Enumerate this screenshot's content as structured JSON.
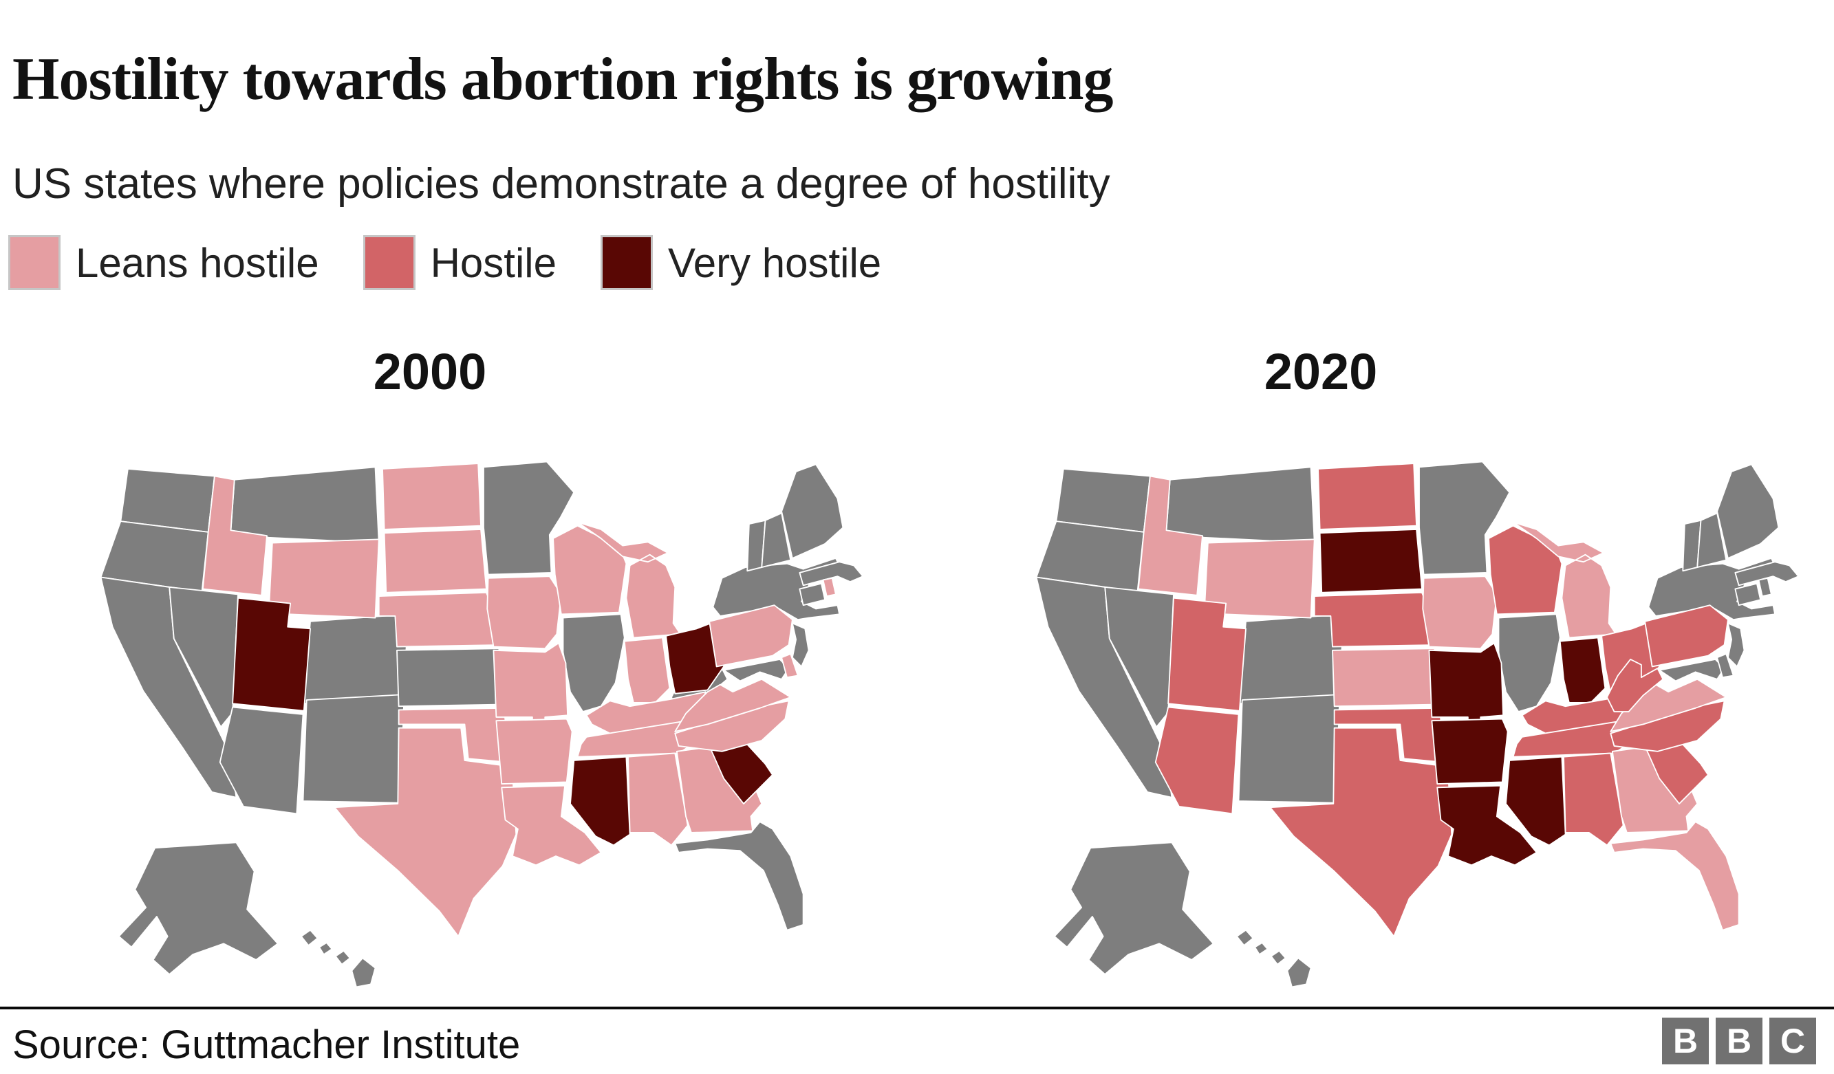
{
  "title": "Hostility towards abortion rights is growing",
  "subtitle": "US states where policies demonstrate a degree of hostility",
  "colors": {
    "leans": "#e59ea2",
    "hostile": "#d26467",
    "very": "#590704",
    "none": "#7e7e7e",
    "border": "#ffffff",
    "swatch_border": "#c6c6c6",
    "logo_gray": "#717171"
  },
  "legend": [
    {
      "key": "leans",
      "label": "Leans hostile"
    },
    {
      "key": "hostile",
      "label": "Hostile"
    },
    {
      "key": "very",
      "label": "Very hostile"
    }
  ],
  "maps": [
    {
      "year": "2000"
    },
    {
      "year": "2020"
    }
  ],
  "source": "Source: Guttmacher Institute",
  "logo": {
    "letters": [
      "B",
      "B",
      "C"
    ]
  },
  "states": [
    {
      "id": "WA",
      "name": "Washington",
      "status": {
        "2000": "none",
        "2020": "none"
      }
    },
    {
      "id": "OR",
      "name": "Oregon",
      "status": {
        "2000": "none",
        "2020": "none"
      }
    },
    {
      "id": "CA",
      "name": "California",
      "status": {
        "2000": "none",
        "2020": "none"
      }
    },
    {
      "id": "NV",
      "name": "Nevada",
      "status": {
        "2000": "none",
        "2020": "none"
      }
    },
    {
      "id": "ID",
      "name": "Idaho",
      "status": {
        "2000": "leans",
        "2020": "leans"
      }
    },
    {
      "id": "MT",
      "name": "Montana",
      "status": {
        "2000": "none",
        "2020": "none"
      }
    },
    {
      "id": "WY",
      "name": "Wyoming",
      "status": {
        "2000": "leans",
        "2020": "leans"
      }
    },
    {
      "id": "UT",
      "name": "Utah",
      "status": {
        "2000": "very",
        "2020": "hostile"
      }
    },
    {
      "id": "CO",
      "name": "Colorado",
      "status": {
        "2000": "none",
        "2020": "none"
      }
    },
    {
      "id": "AZ",
      "name": "Arizona",
      "status": {
        "2000": "none",
        "2020": "hostile"
      }
    },
    {
      "id": "NM",
      "name": "New Mexico",
      "status": {
        "2000": "none",
        "2020": "none"
      }
    },
    {
      "id": "ND",
      "name": "North Dakota",
      "status": {
        "2000": "leans",
        "2020": "hostile"
      }
    },
    {
      "id": "SD",
      "name": "South Dakota",
      "status": {
        "2000": "leans",
        "2020": "very"
      }
    },
    {
      "id": "NE",
      "name": "Nebraska",
      "status": {
        "2000": "leans",
        "2020": "hostile"
      }
    },
    {
      "id": "KS",
      "name": "Kansas",
      "status": {
        "2000": "none",
        "2020": "leans"
      }
    },
    {
      "id": "OK",
      "name": "Oklahoma",
      "status": {
        "2000": "leans",
        "2020": "hostile"
      }
    },
    {
      "id": "TX",
      "name": "Texas",
      "status": {
        "2000": "leans",
        "2020": "hostile"
      }
    },
    {
      "id": "MN",
      "name": "Minnesota",
      "status": {
        "2000": "none",
        "2020": "none"
      }
    },
    {
      "id": "IA",
      "name": "Iowa",
      "status": {
        "2000": "leans",
        "2020": "leans"
      }
    },
    {
      "id": "MO",
      "name": "Missouri",
      "status": {
        "2000": "leans",
        "2020": "very"
      }
    },
    {
      "id": "AR",
      "name": "Arkansas",
      "status": {
        "2000": "leans",
        "2020": "very"
      }
    },
    {
      "id": "LA",
      "name": "Louisiana",
      "status": {
        "2000": "leans",
        "2020": "very"
      }
    },
    {
      "id": "WI",
      "name": "Wisconsin",
      "status": {
        "2000": "leans",
        "2020": "hostile"
      }
    },
    {
      "id": "IL",
      "name": "Illinois",
      "status": {
        "2000": "none",
        "2020": "none"
      }
    },
    {
      "id": "MI",
      "name": "Michigan",
      "status": {
        "2000": "leans",
        "2020": "leans"
      }
    },
    {
      "id": "IN",
      "name": "Indiana",
      "status": {
        "2000": "leans",
        "2020": "very"
      }
    },
    {
      "id": "OH",
      "name": "Ohio",
      "status": {
        "2000": "very",
        "2020": "hostile"
      }
    },
    {
      "id": "KY",
      "name": "Kentucky",
      "status": {
        "2000": "leans",
        "2020": "hostile"
      }
    },
    {
      "id": "TN",
      "name": "Tennessee",
      "status": {
        "2000": "leans",
        "2020": "hostile"
      }
    },
    {
      "id": "MS",
      "name": "Mississippi",
      "status": {
        "2000": "very",
        "2020": "very"
      }
    },
    {
      "id": "AL",
      "name": "Alabama",
      "status": {
        "2000": "leans",
        "2020": "hostile"
      }
    },
    {
      "id": "GA",
      "name": "Georgia",
      "status": {
        "2000": "leans",
        "2020": "leans"
      }
    },
    {
      "id": "FL",
      "name": "Florida",
      "status": {
        "2000": "none",
        "2020": "leans"
      }
    },
    {
      "id": "SC",
      "name": "South Carolina",
      "status": {
        "2000": "very",
        "2020": "hostile"
      }
    },
    {
      "id": "NC",
      "name": "North Carolina",
      "status": {
        "2000": "leans",
        "2020": "hostile"
      }
    },
    {
      "id": "VA",
      "name": "Virginia",
      "status": {
        "2000": "leans",
        "2020": "leans"
      }
    },
    {
      "id": "WV",
      "name": "West Virginia",
      "status": {
        "2000": "none",
        "2020": "hostile"
      }
    },
    {
      "id": "PA",
      "name": "Pennsylvania",
      "status": {
        "2000": "leans",
        "2020": "hostile"
      }
    },
    {
      "id": "MD",
      "name": "Maryland",
      "status": {
        "2000": "none",
        "2020": "none"
      }
    },
    {
      "id": "DE",
      "name": "Delaware",
      "status": {
        "2000": "leans",
        "2020": "none"
      }
    },
    {
      "id": "NJ",
      "name": "New Jersey",
      "status": {
        "2000": "none",
        "2020": "none"
      }
    },
    {
      "id": "NY",
      "name": "New York",
      "status": {
        "2000": "none",
        "2020": "none"
      }
    },
    {
      "id": "CT",
      "name": "Connecticut",
      "status": {
        "2000": "none",
        "2020": "none"
      }
    },
    {
      "id": "RI",
      "name": "Rhode Island",
      "status": {
        "2000": "leans",
        "2020": "none"
      }
    },
    {
      "id": "MA",
      "name": "Massachusetts",
      "status": {
        "2000": "none",
        "2020": "none"
      }
    },
    {
      "id": "VT",
      "name": "Vermont",
      "status": {
        "2000": "none",
        "2020": "none"
      }
    },
    {
      "id": "NH",
      "name": "New Hampshire",
      "status": {
        "2000": "none",
        "2020": "none"
      }
    },
    {
      "id": "ME",
      "name": "Maine",
      "status": {
        "2000": "none",
        "2020": "none"
      }
    },
    {
      "id": "AK",
      "name": "Alaska",
      "status": {
        "2000": "none",
        "2020": "none"
      }
    },
    {
      "id": "HI",
      "name": "Hawaii",
      "status": {
        "2000": "none",
        "2020": "none"
      }
    }
  ],
  "chart_data": {
    "type": "heatmap",
    "subtype": "choropleth-map-pair",
    "title": "Hostility towards abortion rights is growing",
    "subtitle": "US states where policies demonstrate a degree of hostility",
    "legend_entries": [
      "Leans hostile",
      "Hostile",
      "Very hostile"
    ],
    "legend_position": "top-left",
    "source": "Source: Guttmacher Institute",
    "maps": [
      {
        "year": "2000",
        "leans_hostile": [
          "Idaho",
          "Wyoming",
          "North Dakota",
          "South Dakota",
          "Nebraska",
          "Iowa",
          "Missouri",
          "Oklahoma",
          "Texas",
          "Arkansas",
          "Louisiana",
          "Wisconsin",
          "Michigan",
          "Indiana",
          "Kentucky",
          "Tennessee",
          "Alabama",
          "Georgia",
          "North Carolina",
          "Virginia",
          "Pennsylvania",
          "Delaware",
          "Rhode Island"
        ],
        "hostile": [],
        "very_hostile": [
          "Utah",
          "Ohio",
          "Mississippi",
          "South Carolina"
        ],
        "no_category": [
          "Washington",
          "Oregon",
          "California",
          "Nevada",
          "Montana",
          "Colorado",
          "Arizona",
          "New Mexico",
          "Kansas",
          "Minnesota",
          "Illinois",
          "West Virginia",
          "Florida",
          "Maryland",
          "New Jersey",
          "New York",
          "Connecticut",
          "Massachusetts",
          "Vermont",
          "New Hampshire",
          "Maine",
          "Alaska",
          "Hawaii"
        ]
      },
      {
        "year": "2020",
        "leans_hostile": [
          "Idaho",
          "Wyoming",
          "Kansas",
          "Iowa",
          "Michigan",
          "Virginia",
          "Georgia",
          "Florida"
        ],
        "hostile": [
          "Utah",
          "Arizona",
          "North Dakota",
          "Nebraska",
          "Oklahoma",
          "Texas",
          "Wisconsin",
          "Ohio",
          "Kentucky",
          "Tennessee",
          "Alabama",
          "South Carolina",
          "North Carolina",
          "West Virginia",
          "Pennsylvania"
        ],
        "very_hostile": [
          "South Dakota",
          "Missouri",
          "Arkansas",
          "Louisiana",
          "Mississippi",
          "Indiana"
        ],
        "no_category": [
          "Washington",
          "Oregon",
          "California",
          "Nevada",
          "Montana",
          "Colorado",
          "New Mexico",
          "Minnesota",
          "Illinois",
          "New York",
          "New Jersey",
          "Maryland",
          "Delaware",
          "Rhode Island",
          "Connecticut",
          "Massachusetts",
          "Vermont",
          "New Hampshire",
          "Maine",
          "Alaska",
          "Hawaii"
        ]
      }
    ]
  }
}
